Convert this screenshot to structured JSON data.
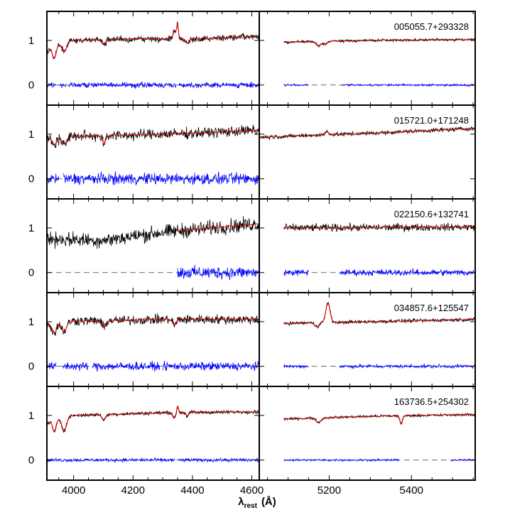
{
  "chart_data": {
    "type": "line",
    "xlabel": "λ",
    "xlabel_sub": "rest",
    "xlabel_unit": "(Å)",
    "columns": [
      {
        "xlim": [
          3910,
          4625
        ],
        "ticks": [
          4000,
          4200,
          4400,
          4600
        ]
      },
      {
        "xlim": [
          5030,
          5555
        ],
        "ticks": [
          5200,
          5400
        ]
      }
    ],
    "ylim": [
      -0.45,
      1.65
    ],
    "yticks": [
      0,
      1
    ],
    "colors": {
      "data": "#000000",
      "model": "#e00000",
      "residual": "#0000ff",
      "zero_line": "#555555"
    },
    "panels": [
      {
        "label": "005055.7+293328",
        "left": {
          "features": [
            [
              3935,
              -0.3,
              6
            ],
            [
              3968,
              -0.2,
              8
            ],
            [
              4102,
              -0.12,
              6
            ],
            [
              4340,
              0.18,
              5
            ],
            [
              4350,
              0.3,
              3
            ],
            [
              4382,
              -0.1,
              5
            ]
          ],
          "base": [
            [
              3910,
              0.7
            ],
            [
              3935,
              0.9
            ],
            [
              4000,
              1.0
            ],
            [
              4200,
              1.03
            ],
            [
              4400,
              1.03
            ],
            [
              4600,
              1.08
            ]
          ],
          "noise": 0.06,
          "residual": {
            "noise": 0.05,
            "gaps": [
              [
                3940,
                3952
              ],
              [
                3975,
                3982
              ],
              [
                4345,
                4355
              ]
            ]
          }
        },
        "right": {
          "features": [
            [
              5175,
              -0.1,
              6
            ],
            [
              5190,
              -0.06,
              4
            ]
          ],
          "base": [
            [
              5090,
              0.96
            ],
            [
              5300,
              1.0
            ],
            [
              5555,
              1.02
            ]
          ],
          "start": 5090,
          "noise": 0.025,
          "residual": {
            "noise": 0.02,
            "gaps": [
              [
                5150,
                5230
              ]
            ]
          }
        }
      },
      {
        "label": "015721.0+171248",
        "left": {
          "features": [
            [
              3935,
              -0.15,
              7
            ],
            [
              3968,
              -0.15,
              8
            ],
            [
              4102,
              -0.2,
              4
            ]
          ],
          "base": [
            [
              3910,
              0.9
            ],
            [
              4000,
              0.95
            ],
            [
              4200,
              0.98
            ],
            [
              4400,
              1.02
            ],
            [
              4600,
              1.08
            ]
          ],
          "noise": 0.1,
          "residual": {
            "noise": 0.11,
            "gaps": [
              [
                3950,
                3965
              ]
            ]
          }
        },
        "right": {
          "features": [
            [
              5195,
              0.08,
              4
            ]
          ],
          "base": [
            [
              5030,
              0.93
            ],
            [
              5300,
              1.02
            ],
            [
              5555,
              1.13
            ]
          ],
          "start": 5030,
          "noise": 0.04,
          "residual": null
        }
      },
      {
        "label": "022150.6+132741",
        "left": {
          "features": [],
          "base": [
            [
              3910,
              0.75
            ],
            [
              4100,
              0.72
            ],
            [
              4300,
              0.9
            ],
            [
              4600,
              1.08
            ]
          ],
          "noise": 0.14,
          "model_start": 4345,
          "residual": {
            "noise": 0.12,
            "start": 4350
          }
        },
        "right": {
          "features": [],
          "base": [
            [
              5090,
              1.0
            ],
            [
              5555,
              1.02
            ]
          ],
          "start": 5090,
          "noise": 0.07,
          "residual": {
            "noise": 0.06,
            "gaps": [
              [
                5150,
                5225
              ]
            ]
          }
        }
      },
      {
        "label": "034857.6+125547",
        "left": {
          "features": [
            [
              3935,
              -0.2,
              7
            ],
            [
              3968,
              -0.2,
              8
            ],
            [
              4102,
              -0.15,
              6
            ],
            [
              4340,
              -0.12,
              6
            ]
          ],
          "base": [
            [
              3910,
              0.92
            ],
            [
              4000,
              1.02
            ],
            [
              4100,
              1.02
            ],
            [
              4300,
              1.05
            ],
            [
              4600,
              1.05
            ]
          ],
          "noise": 0.09,
          "residual": {
            "noise": 0.08,
            "gaps": [
              [
                3942,
                3960
              ],
              [
                4050,
                4062
              ],
              [
                4290,
                4300
              ]
            ]
          }
        },
        "right": {
          "features": [
            [
              5170,
              -0.08,
              5
            ],
            [
              5197,
              0.45,
              5
            ]
          ],
          "base": [
            [
              5090,
              0.96
            ],
            [
              5300,
              1.0
            ],
            [
              5555,
              1.05
            ]
          ],
          "start": 5090,
          "noise": 0.035,
          "residual": {
            "noise": 0.035,
            "gaps": [
              [
                5150,
                5225
              ]
            ]
          }
        }
      },
      {
        "label": "163736.5+254302",
        "left": {
          "features": [
            [
              3935,
              -0.3,
              6
            ],
            [
              3968,
              -0.3,
              8
            ],
            [
              4102,
              -0.12,
              6
            ],
            [
              4340,
              -0.12,
              5
            ],
            [
              4350,
              0.15,
              3
            ],
            [
              4382,
              -0.08,
              4
            ]
          ],
          "base": [
            [
              3910,
              0.8
            ],
            [
              3930,
              0.92
            ],
            [
              4000,
              1.0
            ],
            [
              4300,
              1.06
            ],
            [
              4600,
              1.08
            ]
          ],
          "noise": 0.035,
          "residual": {
            "noise": 0.035,
            "gaps": [
              [
                4343,
                4352
              ]
            ]
          }
        },
        "right": {
          "features": [
            [
              5175,
              -0.1,
              6
            ],
            [
              5375,
              -0.18,
              3
            ]
          ],
          "base": [
            [
              5090,
              0.92
            ],
            [
              5300,
              0.98
            ],
            [
              5555,
              1.02
            ]
          ],
          "start": 5090,
          "noise": 0.025,
          "residual": {
            "noise": 0.02,
            "gaps": [
              [
                5370,
                5495
              ]
            ]
          }
        }
      }
    ]
  }
}
